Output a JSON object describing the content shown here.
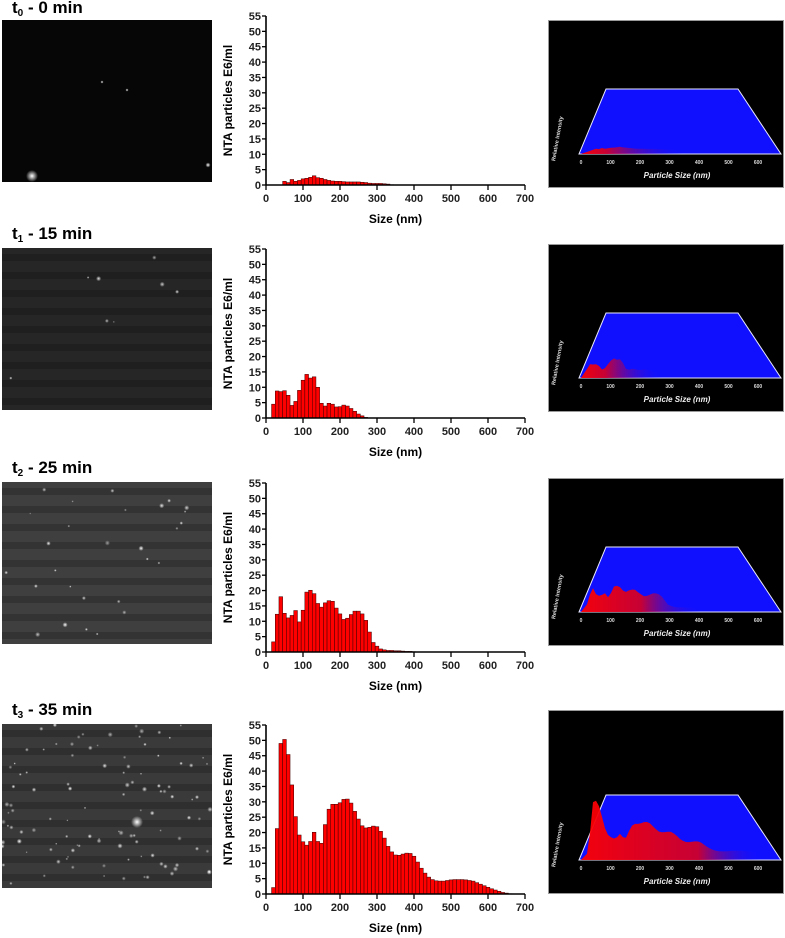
{
  "figure": {
    "panels": [
      {
        "label_main": "t",
        "label_sub": "0",
        "label_rest": " - 0 min",
        "time_min": 0,
        "micrograph_brightness": "#060606",
        "micrograph_particles": 4
      },
      {
        "label_main": "t",
        "label_sub": "1",
        "label_rest": " - 15 min",
        "time_min": 15,
        "micrograph_brightness": "#262626",
        "micrograph_particles": 8
      },
      {
        "label_main": "t",
        "label_sub": "2",
        "label_rest": " - 25 min",
        "time_min": 25,
        "micrograph_brightness": "#3f3f3f",
        "micrograph_particles": 28
      },
      {
        "label_main": "t",
        "label_sub": "3",
        "label_rest": " - 35 min",
        "time_min": 35,
        "micrograph_brightness": "#3a3a3a",
        "micrograph_particles": 110
      }
    ],
    "surface_plot": {
      "ylabel": "Relative Intensity",
      "xlabel": "Particle Size (nm)",
      "ticks": [
        "0",
        "100",
        "200",
        "300",
        "400",
        "500",
        "600"
      ],
      "plane_color": "#1010ff",
      "peak_color": "#ff0000"
    }
  },
  "chart_data": [
    {
      "type": "bar",
      "title": "t0 - 0 min",
      "xlabel": "Size (nm)",
      "ylabel": "NTA particles E6/ml",
      "xlim": [
        0,
        700
      ],
      "ylim": [
        0,
        55
      ],
      "xticks": [
        0,
        100,
        200,
        300,
        400,
        500,
        600,
        700
      ],
      "yticks": [
        0,
        5,
        10,
        15,
        20,
        25,
        30,
        35,
        40,
        45,
        50,
        55
      ],
      "bin_width_nm": 10,
      "bar_color": "#ff0000",
      "x": [
        50,
        60,
        70,
        80,
        90,
        100,
        110,
        120,
        130,
        140,
        150,
        160,
        170,
        180,
        190,
        200,
        210,
        220,
        230,
        240,
        250,
        260,
        270,
        280,
        290,
        300,
        310,
        320,
        330,
        340
      ],
      "values": [
        1.2,
        0.8,
        1.8,
        1.2,
        1.5,
        2.0,
        2.2,
        2.5,
        3.0,
        2.4,
        2.2,
        1.8,
        1.5,
        1.3,
        1.2,
        1.2,
        1.1,
        1.0,
        1.0,
        1.0,
        1.0,
        0.9,
        0.8,
        0.6,
        0.5,
        0.5,
        0.5,
        0.4,
        0.3,
        0.1
      ]
    },
    {
      "type": "bar",
      "title": "t1 - 15 min",
      "xlabel": "Size (nm)",
      "ylabel": "NTA particles E6/ml",
      "xlim": [
        0,
        700
      ],
      "ylim": [
        0,
        55
      ],
      "xticks": [
        0,
        100,
        200,
        300,
        400,
        500,
        600,
        700
      ],
      "yticks": [
        0,
        5,
        10,
        15,
        20,
        25,
        30,
        35,
        40,
        45,
        50,
        55
      ],
      "bin_width_nm": 10,
      "bar_color": "#ff0000",
      "x": [
        20,
        30,
        40,
        50,
        60,
        70,
        80,
        90,
        100,
        110,
        120,
        130,
        140,
        150,
        160,
        170,
        180,
        190,
        200,
        210,
        220,
        230,
        240,
        250,
        260,
        270
      ],
      "values": [
        4.5,
        8.8,
        8.6,
        8.9,
        7.4,
        4.1,
        5.4,
        9.0,
        12.3,
        14.2,
        13.0,
        13.4,
        10.0,
        4.8,
        3.9,
        4.8,
        4.5,
        3.6,
        3.7,
        4.2,
        3.9,
        3.1,
        2.2,
        1.3,
        0.7,
        0.2
      ]
    },
    {
      "type": "bar",
      "title": "t2 - 25 min",
      "xlabel": "Size (nm)",
      "ylabel": "NTA particles E6/ml",
      "xlim": [
        0,
        700
      ],
      "ylim": [
        0,
        55
      ],
      "xticks": [
        0,
        100,
        200,
        300,
        400,
        500,
        600,
        700
      ],
      "yticks": [
        0,
        5,
        10,
        15,
        20,
        25,
        30,
        35,
        40,
        45,
        50,
        55
      ],
      "bin_width_nm": 10,
      "bar_color": "#ff0000",
      "x": [
        20,
        30,
        40,
        50,
        60,
        70,
        80,
        90,
        100,
        110,
        120,
        130,
        140,
        150,
        160,
        170,
        180,
        190,
        200,
        210,
        220,
        230,
        240,
        250,
        260,
        270,
        280,
        290,
        300,
        310,
        320,
        330,
        340,
        350,
        360,
        370,
        380,
        390,
        400
      ],
      "values": [
        3.3,
        12.3,
        18.0,
        12.6,
        11.1,
        11.9,
        13.5,
        9.8,
        13.6,
        19.5,
        20.1,
        19.0,
        15.8,
        14.6,
        16.0,
        16.7,
        16.5,
        14.3,
        12.4,
        10.6,
        11.0,
        12.2,
        13.3,
        13.3,
        12.4,
        10.3,
        6.5,
        3.1,
        1.9,
        1.0,
        0.7,
        0.5,
        0.5,
        0.4,
        0.4,
        0.3,
        0.2,
        0.2,
        0.1
      ]
    },
    {
      "type": "bar",
      "title": "t3 - 35 min",
      "xlabel": "Size (nm)",
      "ylabel": "NTA particles E6/ml",
      "xlim": [
        0,
        700
      ],
      "ylim": [
        0,
        55
      ],
      "xticks": [
        0,
        100,
        200,
        300,
        400,
        500,
        600,
        700
      ],
      "yticks": [
        0,
        5,
        10,
        15,
        20,
        25,
        30,
        35,
        40,
        45,
        50,
        55
      ],
      "bin_width_nm": 10,
      "bar_color": "#ff0000",
      "x": [
        20,
        30,
        40,
        50,
        60,
        70,
        80,
        90,
        100,
        110,
        120,
        130,
        140,
        150,
        160,
        170,
        180,
        190,
        200,
        210,
        220,
        230,
        240,
        250,
        260,
        270,
        280,
        290,
        300,
        310,
        320,
        330,
        340,
        350,
        360,
        370,
        380,
        390,
        400,
        410,
        420,
        430,
        440,
        450,
        460,
        470,
        480,
        490,
        500,
        510,
        520,
        530,
        540,
        550,
        560,
        570,
        580,
        590,
        600,
        610,
        620,
        630,
        640,
        650,
        660,
        670
      ],
      "values": [
        2.1,
        21.3,
        49.0,
        50.3,
        45.4,
        35.5,
        25.2,
        19.2,
        17.0,
        15.9,
        17.1,
        20.1,
        17.1,
        16.5,
        22.6,
        27.6,
        29.2,
        29.2,
        29.7,
        30.8,
        30.9,
        29.6,
        26.9,
        24.4,
        22.2,
        21.5,
        21.7,
        22.1,
        21.9,
        20.4,
        18.2,
        15.5,
        13.7,
        12.7,
        12.6,
        13.0,
        13.3,
        13.2,
        12.3,
        10.4,
        8.4,
        6.8,
        5.5,
        4.7,
        4.3,
        4.2,
        4.2,
        4.4,
        4.6,
        4.7,
        4.7,
        4.7,
        4.6,
        4.4,
        4.2,
        3.7,
        3.2,
        2.7,
        2.2,
        1.7,
        1.3,
        0.9,
        0.5,
        0.3,
        0.1,
        0.05
      ]
    }
  ]
}
